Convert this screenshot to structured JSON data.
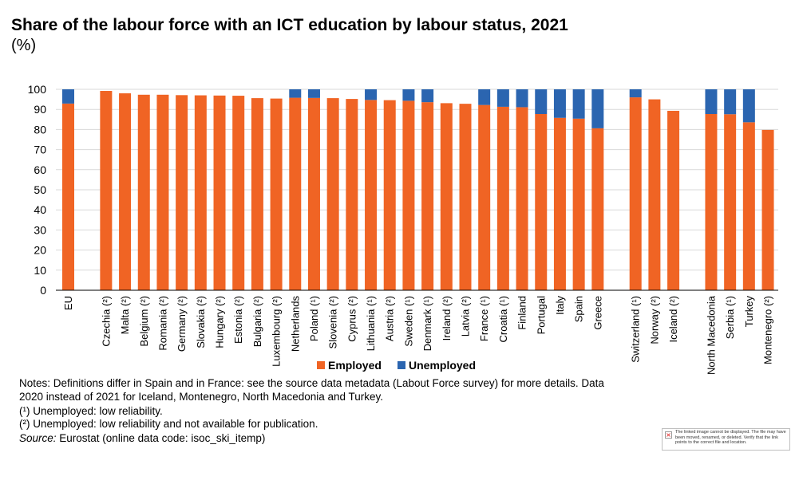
{
  "chart_data": {
    "type": "bar",
    "stacked": true,
    "title": "Share of the labour force with an ICT education by labour status, 2021",
    "subtitle": "(%)",
    "ylim": [
      0,
      100
    ],
    "yticks": [
      0,
      10,
      20,
      30,
      40,
      50,
      60,
      70,
      80,
      90,
      100
    ],
    "grid": true,
    "legend_position": "bottom",
    "categories": [
      "EU",
      "Czechia (²)",
      "Malta (²)",
      "Belgium (²)",
      "Romania (²)",
      "Germany (²)",
      "Slovakia (²)",
      "Hungary (²)",
      "Estonia (²)",
      "Bulgaria (²)",
      "Luxembourg (²)",
      "Netherlands",
      "Poland (¹)",
      "Slovenia (²)",
      "Cyprus (²)",
      "Lithuania (¹)",
      "Austria (²)",
      "Sweden (¹)",
      "Denmark (¹)",
      "Ireland (²)",
      "Latvia (²)",
      "France (¹)",
      "Croatia (¹)",
      "Finland",
      "Portugal",
      "Italy",
      "Spain",
      "Greece",
      "Switzerland (¹)",
      "Norway (²)",
      "Iceland (²)",
      "North Macedonia",
      "Serbia (¹)",
      "Turkey",
      "Montenegro (²)"
    ],
    "series": [
      {
        "name": "Employed",
        "color": "#f06424",
        "values": [
          92.9,
          99.2,
          98.0,
          97.3,
          97.3,
          97.1,
          97.0,
          96.9,
          96.8,
          95.6,
          95.4,
          95.8,
          95.7,
          95.6,
          95.2,
          94.7,
          94.6,
          94.3,
          93.6,
          93.1,
          92.8,
          92.2,
          91.3,
          91.1,
          87.7,
          85.8,
          85.4,
          80.6,
          96.0,
          95.0,
          89.3,
          87.7,
          87.6,
          83.6,
          79.8
        ]
      },
      {
        "name": "Unemployed",
        "color": "#2b65b0",
        "values": [
          7.1,
          0,
          0,
          0,
          0,
          0,
          0,
          0,
          0,
          0,
          0,
          4.2,
          4.3,
          0,
          0,
          5.3,
          0,
          5.7,
          6.4,
          0,
          0,
          7.8,
          8.7,
          8.9,
          12.3,
          14.2,
          14.6,
          19.4,
          4.0,
          0,
          0,
          12.3,
          12.4,
          16.4,
          0
        ]
      }
    ]
  },
  "notes": {
    "line1": "Notes: Definitions differ in Spain and in France: see the source data metadata (Labout Force survey) for more details. Data 2020 instead of 2021 for Iceland, Montenegro, North Macedonia and Turkey.",
    "line2": "(¹) Unemployed: low reliability.",
    "line3": "(²) Unemployed: low reliability and not available for publication.",
    "source_label": "Source:",
    "source_text": " Eurostat (online data code: isoc_ski_itemp)"
  },
  "broken_image": {
    "message": "The linked image cannot be displayed. The file may have been moved, renamed, or deleted. Verify that the link points to the correct file and location."
  }
}
